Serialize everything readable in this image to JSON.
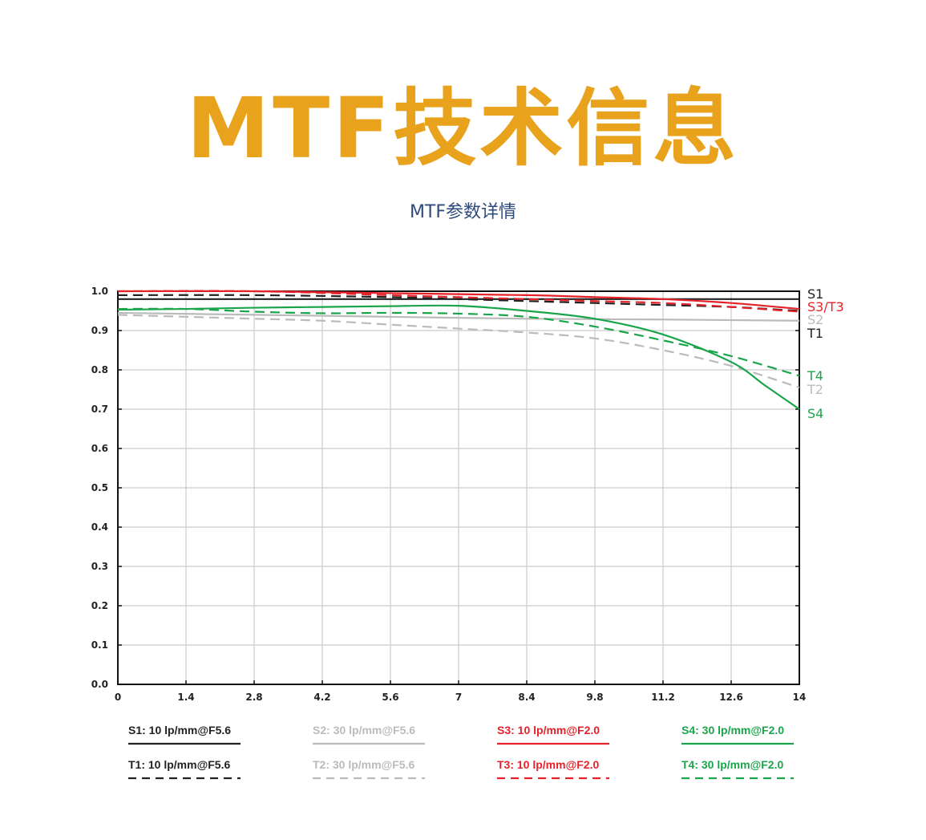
{
  "header": {
    "title": "MTF技术信息",
    "subtitle": "MTF参数详情"
  },
  "colors": {
    "title": "#E8A21C",
    "subtitle": "#2E4A7A",
    "black": "#222222",
    "gray": "#BBBBBB",
    "red": "#E52229",
    "green": "#1BA54B"
  },
  "chart_data": {
    "type": "line",
    "x_ticks": [
      "0",
      "1.4",
      "2.8",
      "4.2",
      "5.6",
      "7",
      "8.4",
      "9.8",
      "11.2",
      "12.6",
      "14"
    ],
    "y_ticks": [
      "0.0",
      "0.1",
      "0.2",
      "0.3",
      "0.4",
      "0.5",
      "0.6",
      "0.7",
      "0.8",
      "0.9",
      "1.0"
    ],
    "xlim": [
      0,
      14
    ],
    "ylim": [
      0,
      1.0
    ],
    "grid": true,
    "series": [
      {
        "key": "S1",
        "name": "S1: 10 lp/mm@F5.6",
        "color": "black",
        "dash": false,
        "end_label": "S1",
        "x": [
          0,
          2.8,
          5.6,
          8.4,
          11.2,
          14
        ],
        "y": [
          0.98,
          0.98,
          0.98,
          0.98,
          0.98,
          0.98
        ]
      },
      {
        "key": "T1",
        "name": "T1: 10 lp/mm@F5.6",
        "color": "black",
        "dash": true,
        "end_label": "T1",
        "x": [
          0,
          2.8,
          5.6,
          7,
          8.4,
          9.8,
          11.2,
          12.6,
          14
        ],
        "y": [
          0.99,
          0.99,
          0.985,
          0.98,
          0.975,
          0.97,
          0.965,
          0.96,
          0.95
        ]
      },
      {
        "key": "S2",
        "name": "S2: 30 lp/mm@F5.6",
        "color": "gray",
        "dash": false,
        "end_label": "S2",
        "x": [
          0,
          2.8,
          5.6,
          8.4,
          11.2,
          14
        ],
        "y": [
          0.945,
          0.94,
          0.935,
          0.93,
          0.928,
          0.925
        ]
      },
      {
        "key": "T2",
        "name": "T2: 30 lp/mm@F5.6",
        "color": "gray",
        "dash": true,
        "end_label": "T2",
        "x": [
          0,
          1.4,
          2.8,
          4.2,
          5.6,
          7,
          8.4,
          9.8,
          11.2,
          12.6,
          14
        ],
        "y": [
          0.94,
          0.935,
          0.93,
          0.925,
          0.915,
          0.905,
          0.895,
          0.88,
          0.85,
          0.81,
          0.755
        ]
      },
      {
        "key": "S3",
        "name": "S3: 10 lp/mm@F2.0",
        "color": "red",
        "dash": false,
        "end_label": "S3/T3",
        "x": [
          0,
          2.8,
          5.6,
          8.4,
          9.8,
          11.2,
          12.6,
          14
        ],
        "y": [
          1.0,
          1.0,
          0.995,
          0.99,
          0.985,
          0.98,
          0.97,
          0.955
        ]
      },
      {
        "key": "T3",
        "name": "T3: 10 lp/mm@F2.0",
        "color": "red",
        "dash": true,
        "end_label": "",
        "x": [
          0,
          2.8,
          5.6,
          7,
          8.4,
          9.8,
          11.2,
          12.6,
          14
        ],
        "y": [
          1.0,
          1.0,
          0.99,
          0.985,
          0.98,
          0.975,
          0.97,
          0.96,
          0.948
        ]
      },
      {
        "key": "S4",
        "name": "S4: 30 lp/mm@F2.0",
        "color": "green",
        "dash": false,
        "end_label": "S4",
        "x": [
          0,
          1.4,
          2.8,
          4.2,
          5.6,
          7,
          8.4,
          9.8,
          11.2,
          12.6,
          13.3,
          14
        ],
        "y": [
          0.953,
          0.955,
          0.958,
          0.96,
          0.962,
          0.963,
          0.95,
          0.93,
          0.89,
          0.82,
          0.76,
          0.7
        ]
      },
      {
        "key": "T4",
        "name": "T4: 30 lp/mm@F2.0",
        "color": "green",
        "dash": true,
        "end_label": "T4",
        "x": [
          0,
          1.4,
          2.8,
          4.2,
          5.6,
          7,
          8.4,
          9.8,
          11.2,
          12.6,
          14
        ],
        "y": [
          0.955,
          0.955,
          0.948,
          0.944,
          0.945,
          0.943,
          0.935,
          0.91,
          0.875,
          0.835,
          0.785
        ]
      }
    ],
    "legend_order": [
      [
        "S1",
        "S2",
        "S3",
        "S4"
      ],
      [
        "T1",
        "T2",
        "T3",
        "T4"
      ]
    ]
  }
}
